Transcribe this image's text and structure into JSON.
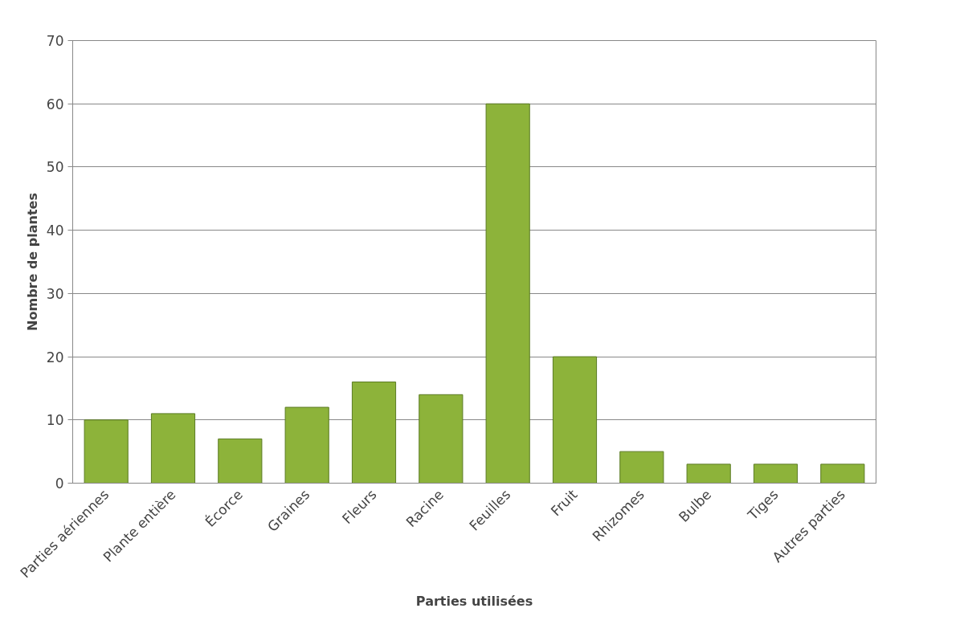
{
  "chart_data": {
    "type": "bar",
    "xlabel": "Parties utilisées",
    "ylabel": "Nombre de plantes",
    "categories": [
      "Parties aériennes",
      "Plante entière",
      "Écorce",
      "Graines",
      "Fleurs",
      "Racine",
      "Feuilles",
      "Fruit",
      "Rhizomes",
      "Bulbe",
      "Tiges",
      "Autres parties"
    ],
    "values": [
      10,
      11,
      7,
      12,
      16,
      14,
      60,
      20,
      5,
      3,
      3,
      3
    ],
    "color": "#8db33a",
    "ylim": [
      0,
      70
    ],
    "yticks": [
      0,
      10,
      20,
      30,
      40,
      50,
      60,
      70
    ],
    "grid": "y"
  }
}
